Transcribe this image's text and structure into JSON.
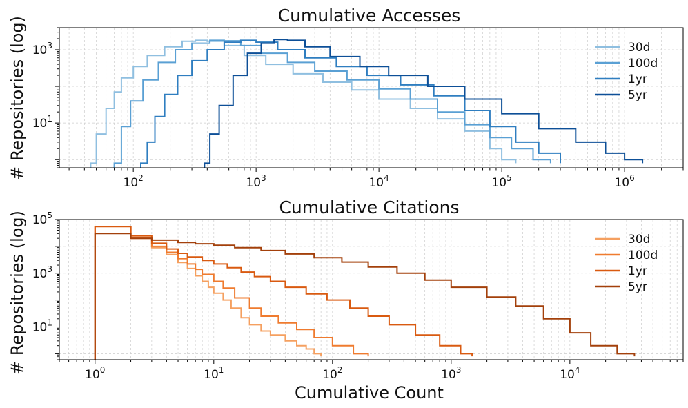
{
  "chart_data": [
    {
      "type": "histogram",
      "title": "Cumulative Accesses",
      "ylabel": "# Repositories (log)",
      "xlabel": "",
      "xscale": "log",
      "yscale": "log",
      "xlim": [
        25,
        3000000
      ],
      "ylim": [
        0.6,
        4000
      ],
      "x_ticks": [
        {
          "value": 100,
          "label": "10",
          "exp": "2"
        },
        {
          "value": 1000,
          "label": "10",
          "exp": "3"
        },
        {
          "value": 10000,
          "label": "10",
          "exp": "4"
        },
        {
          "value": 100000,
          "label": "10",
          "exp": "5"
        },
        {
          "value": 1000000,
          "label": "10",
          "exp": "6"
        }
      ],
      "y_ticks": [
        {
          "value": 10,
          "label": "10",
          "exp": "1"
        },
        {
          "value": 1000,
          "label": "10",
          "exp": "3"
        }
      ],
      "legend_position": "top-right",
      "series": [
        {
          "name": "30d",
          "color": "#8fbfe0",
          "points": [
            [
              45,
              0.8
            ],
            [
              50,
              5
            ],
            [
              60,
              25
            ],
            [
              70,
              70
            ],
            [
              80,
              170
            ],
            [
              100,
              350
            ],
            [
              130,
              700
            ],
            [
              180,
              1200
            ],
            [
              250,
              1700
            ],
            [
              320,
              1800
            ],
            [
              400,
              1700
            ],
            [
              550,
              1300
            ],
            [
              800,
              700
            ],
            [
              1200,
              400
            ],
            [
              2000,
              220
            ],
            [
              3500,
              130
            ],
            [
              6000,
              80
            ],
            [
              10000,
              45
            ],
            [
              18000,
              25
            ],
            [
              30000,
              13
            ],
            [
              50000,
              6
            ],
            [
              80000,
              2
            ],
            [
              100000,
              1
            ],
            [
              130000,
              0.8
            ]
          ]
        },
        {
          "name": "100d",
          "color": "#5aa0d4",
          "points": [
            [
              70,
              0.8
            ],
            [
              80,
              8
            ],
            [
              95,
              40
            ],
            [
              120,
              150
            ],
            [
              160,
              450
            ],
            [
              220,
              1000
            ],
            [
              300,
              1500
            ],
            [
              420,
              1800
            ],
            [
              550,
              1750
            ],
            [
              750,
              1300
            ],
            [
              1100,
              800
            ],
            [
              1800,
              450
            ],
            [
              3000,
              260
            ],
            [
              5500,
              150
            ],
            [
              10000,
              85
            ],
            [
              18000,
              45
            ],
            [
              30000,
              20
            ],
            [
              50000,
              9
            ],
            [
              80000,
              4
            ],
            [
              120000,
              2
            ],
            [
              180000,
              1
            ],
            [
              250000,
              0.8
            ]
          ]
        },
        {
          "name": "1yr",
          "color": "#2f7ec0",
          "points": [
            [
              115,
              0.8
            ],
            [
              130,
              3
            ],
            [
              150,
              15
            ],
            [
              180,
              60
            ],
            [
              230,
              200
            ],
            [
              300,
              500
            ],
            [
              400,
              1000
            ],
            [
              550,
              1600
            ],
            [
              750,
              1800
            ],
            [
              1000,
              1600
            ],
            [
              1500,
              1000
            ],
            [
              2500,
              600
            ],
            [
              4500,
              350
            ],
            [
              8000,
              200
            ],
            [
              15000,
              110
            ],
            [
              28000,
              55
            ],
            [
              50000,
              22
            ],
            [
              80000,
              8
            ],
            [
              130000,
              3
            ],
            [
              200000,
              1.5
            ],
            [
              300000,
              0.8
            ]
          ]
        },
        {
          "name": "5yr",
          "color": "#0d4f97",
          "points": [
            [
              380,
              0.8
            ],
            [
              420,
              5
            ],
            [
              500,
              30
            ],
            [
              650,
              200
            ],
            [
              850,
              800
            ],
            [
              1100,
              1500
            ],
            [
              1400,
              1900
            ],
            [
              1800,
              1800
            ],
            [
              2500,
              1200
            ],
            [
              4000,
              650
            ],
            [
              7000,
              350
            ],
            [
              12000,
              200
            ],
            [
              25000,
              100
            ],
            [
              50000,
              45
            ],
            [
              100000,
              18
            ],
            [
              200000,
              7
            ],
            [
              400000,
              3
            ],
            [
              700000,
              1.5
            ],
            [
              1000000,
              1
            ],
            [
              1400000,
              0.8
            ]
          ]
        }
      ]
    },
    {
      "type": "histogram",
      "title": "Cumulative Citations",
      "ylabel": "# Repositories (log)",
      "xlabel": "Cumulative Count",
      "xscale": "log",
      "yscale": "log",
      "xlim": [
        0.5,
        90000
      ],
      "ylim": [
        0.6,
        100000
      ],
      "x_ticks": [
        {
          "value": 1,
          "label": "10",
          "exp": "0"
        },
        {
          "value": 10,
          "label": "10",
          "exp": "1"
        },
        {
          "value": 100,
          "label": "10",
          "exp": "2"
        },
        {
          "value": 1000,
          "label": "10",
          "exp": "3"
        },
        {
          "value": 10000,
          "label": "10",
          "exp": "4"
        }
      ],
      "y_ticks": [
        {
          "value": 10,
          "label": "10",
          "exp": "1"
        },
        {
          "value": 1000,
          "label": "10",
          "exp": "3"
        },
        {
          "value": 100000,
          "label": "10",
          "exp": "5"
        }
      ],
      "legend_position": "top-right",
      "series": [
        {
          "name": "30d",
          "color": "#f5a060",
          "points": [
            [
              1,
              55000
            ],
            [
              2,
              20000
            ],
            [
              3,
              9000
            ],
            [
              4,
              5000
            ],
            [
              5,
              2500
            ],
            [
              6,
              1500
            ],
            [
              7,
              800
            ],
            [
              8,
              500
            ],
            [
              9,
              300
            ],
            [
              10,
              180
            ],
            [
              12,
              100
            ],
            [
              14,
              50
            ],
            [
              17,
              22
            ],
            [
              20,
              12
            ],
            [
              25,
              7
            ],
            [
              30,
              5
            ],
            [
              40,
              3
            ],
            [
              50,
              2
            ],
            [
              60,
              1.5
            ],
            [
              70,
              1
            ],
            [
              80,
              0.8
            ]
          ]
        },
        {
          "name": "100d",
          "color": "#ef7b2f",
          "points": [
            [
              1,
              55000
            ],
            [
              2,
              22000
            ],
            [
              3,
              10000
            ],
            [
              4,
              6000
            ],
            [
              5,
              3500
            ],
            [
              6,
              2200
            ],
            [
              7,
              1400
            ],
            [
              8,
              900
            ],
            [
              10,
              500
            ],
            [
              12,
              280
            ],
            [
              15,
              120
            ],
            [
              20,
              50
            ],
            [
              25,
              25
            ],
            [
              35,
              14
            ],
            [
              50,
              8
            ],
            [
              70,
              4
            ],
            [
              100,
              2
            ],
            [
              150,
              1
            ],
            [
              200,
              0.8
            ]
          ]
        },
        {
          "name": "1yr",
          "color": "#d95a10",
          "points": [
            [
              1,
              55000
            ],
            [
              2,
              25000
            ],
            [
              3,
              13000
            ],
            [
              4,
              8000
            ],
            [
              5,
              5500
            ],
            [
              6,
              4000
            ],
            [
              8,
              3000
            ],
            [
              10,
              2200
            ],
            [
              13,
              1600
            ],
            [
              17,
              1100
            ],
            [
              22,
              750
            ],
            [
              30,
              500
            ],
            [
              40,
              300
            ],
            [
              60,
              170
            ],
            [
              90,
              100
            ],
            [
              140,
              50
            ],
            [
              200,
              25
            ],
            [
              300,
              12
            ],
            [
              500,
              5
            ],
            [
              800,
              2
            ],
            [
              1200,
              1
            ],
            [
              1500,
              0.8
            ]
          ]
        },
        {
          "name": "5yr",
          "color": "#a3400b",
          "points": [
            [
              1,
              30000
            ],
            [
              2,
              20000
            ],
            [
              3,
              17000
            ],
            [
              5,
              14000
            ],
            [
              7,
              12500
            ],
            [
              10,
              11000
            ],
            [
              15,
              9000
            ],
            [
              25,
              7000
            ],
            [
              40,
              5200
            ],
            [
              70,
              3800
            ],
            [
              120,
              2600
            ],
            [
              200,
              1700
            ],
            [
              350,
              1000
            ],
            [
              600,
              550
            ],
            [
              1000,
              300
            ],
            [
              2000,
              130
            ],
            [
              3500,
              60
            ],
            [
              6000,
              20
            ],
            [
              10000,
              6
            ],
            [
              15000,
              2
            ],
            [
              25000,
              1
            ],
            [
              35000,
              0.8
            ]
          ]
        }
      ]
    }
  ]
}
